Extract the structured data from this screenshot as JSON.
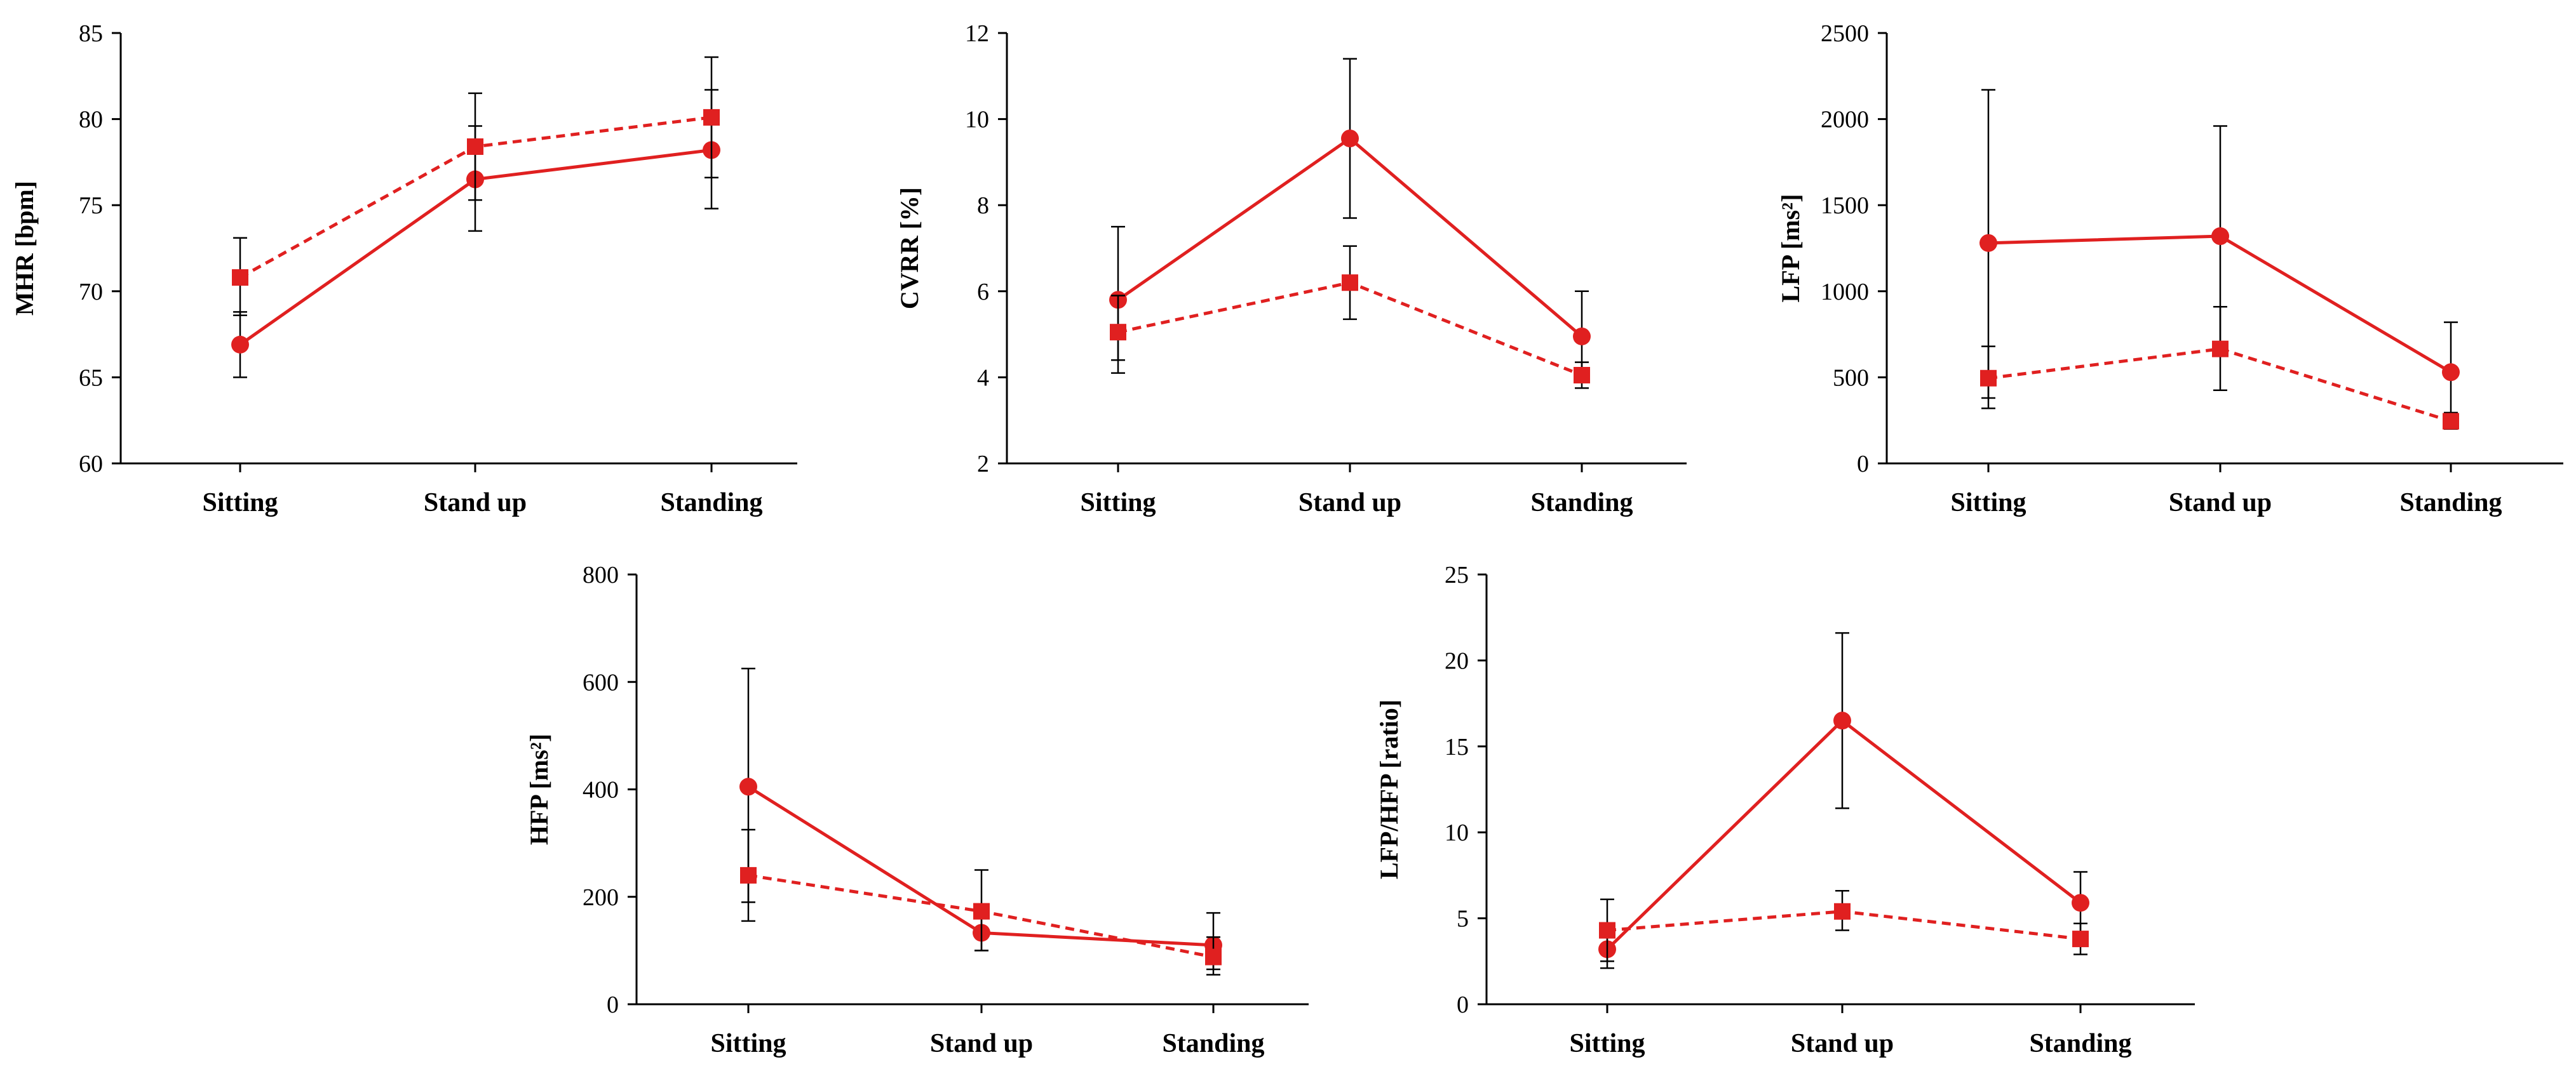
{
  "colors": {
    "series": "#e02020",
    "axis": "#000000"
  },
  "chart_data": [
    {
      "type": "line",
      "categories": [
        "Sitting",
        "Stand up",
        "Standing"
      ],
      "ylabel": "MHR [bpm]",
      "ylim": [
        60,
        85
      ],
      "yticks": [
        60,
        65,
        70,
        75,
        80,
        85
      ],
      "series": [
        {
          "name": "circle-solid",
          "marker": "circle",
          "style": "solid",
          "values": [
            66.9,
            76.5,
            78.2
          ],
          "err_low": [
            65.0,
            73.5,
            74.8
          ],
          "err_high": [
            68.8,
            79.6,
            81.7
          ]
        },
        {
          "name": "square-dashed",
          "marker": "square",
          "style": "dashed",
          "values": [
            70.8,
            78.4,
            80.1
          ],
          "err_low": [
            68.6,
            75.3,
            76.6
          ],
          "err_high": [
            73.1,
            81.5,
            83.6
          ]
        }
      ]
    },
    {
      "type": "line",
      "categories": [
        "Sitting",
        "Stand up",
        "Standing"
      ],
      "ylabel": "CVRR [%]",
      "ylim": [
        2,
        12
      ],
      "yticks": [
        2,
        4,
        6,
        8,
        10,
        12
      ],
      "series": [
        {
          "name": "circle-solid",
          "marker": "circle",
          "style": "solid",
          "values": [
            5.8,
            9.55,
            4.95
          ],
          "err_low": [
            4.4,
            7.7,
            3.9
          ],
          "err_high": [
            7.5,
            11.4,
            6.0
          ]
        },
        {
          "name": "square-dashed",
          "marker": "square",
          "style": "dashed",
          "values": [
            5.05,
            6.2,
            4.05
          ],
          "err_low": [
            4.1,
            5.35,
            3.75
          ],
          "err_high": [
            5.9,
            7.05,
            4.35
          ]
        }
      ]
    },
    {
      "type": "line",
      "categories": [
        "Sitting",
        "Stand up",
        "Standing"
      ],
      "ylabel": "LFP [ms²]",
      "ylim": [
        0,
        2500
      ],
      "yticks": [
        0,
        500,
        1000,
        1500,
        2000,
        2500
      ],
      "series": [
        {
          "name": "circle-solid",
          "marker": "circle",
          "style": "solid",
          "values": [
            1280,
            1320,
            530
          ],
          "err_low": [
            380,
            680,
            240
          ],
          "err_high": [
            2170,
            1960,
            820
          ]
        },
        {
          "name": "square-dashed",
          "marker": "square",
          "style": "dashed",
          "values": [
            495,
            665,
            245
          ],
          "err_low": [
            320,
            425,
            200
          ],
          "err_high": [
            680,
            910,
            295
          ]
        }
      ]
    },
    {
      "type": "line",
      "categories": [
        "Sitting",
        "Stand up",
        "Standing"
      ],
      "ylabel": "HFP [ms²]",
      "ylim": [
        0,
        800
      ],
      "yticks": [
        0,
        200,
        400,
        600,
        800
      ],
      "series": [
        {
          "name": "circle-solid",
          "marker": "circle",
          "style": "solid",
          "values": [
            405,
            133,
            110
          ],
          "err_low": [
            190,
            100,
            65
          ],
          "err_high": [
            625,
            168,
            170
          ]
        },
        {
          "name": "square-dashed",
          "marker": "square",
          "style": "dashed",
          "values": [
            240,
            173,
            88
          ],
          "err_low": [
            155,
            100,
            55
          ],
          "err_high": [
            325,
            250,
            125
          ]
        }
      ]
    },
    {
      "type": "line",
      "categories": [
        "Sitting",
        "Stand up",
        "Standing"
      ],
      "ylabel": "LFP/HFP [ratio]",
      "ylim": [
        0,
        25
      ],
      "yticks": [
        0,
        5,
        10,
        15,
        20,
        25
      ],
      "series": [
        {
          "name": "circle-solid",
          "marker": "circle",
          "style": "solid",
          "values": [
            3.2,
            16.5,
            5.9
          ],
          "err_low": [
            2.1,
            11.4,
            4.2
          ],
          "err_high": [
            4.4,
            21.6,
            7.7
          ]
        },
        {
          "name": "square-dashed",
          "marker": "square",
          "style": "dashed",
          "values": [
            4.3,
            5.4,
            3.8
          ],
          "err_low": [
            2.5,
            4.3,
            2.9
          ],
          "err_high": [
            6.1,
            6.6,
            4.7
          ]
        }
      ]
    }
  ]
}
